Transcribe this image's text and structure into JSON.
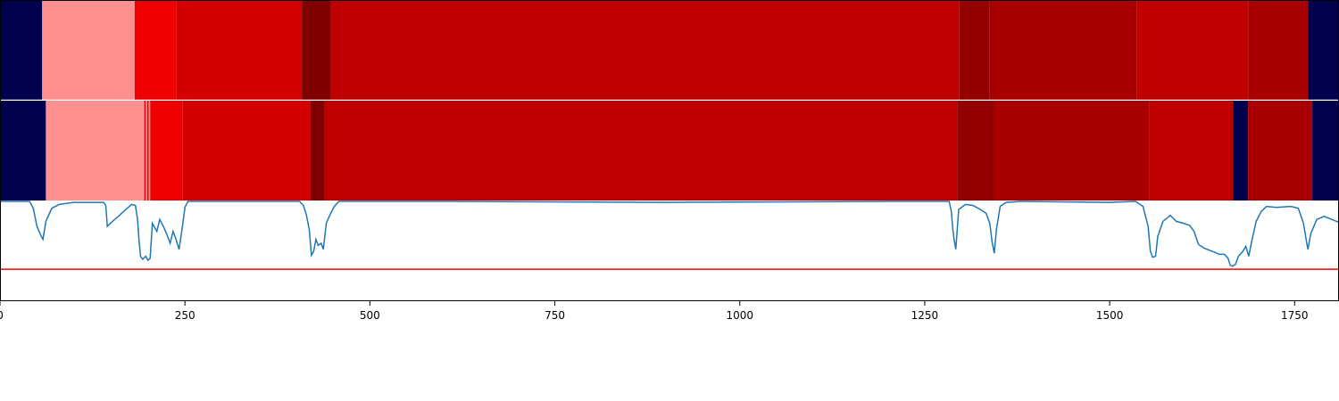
{
  "chart_data": {
    "type": "heatmap",
    "title": "",
    "xlabel": "",
    "ylabel": "",
    "xlim": [
      0,
      1810
    ],
    "x_ticks": [
      0,
      250,
      500,
      750,
      1000,
      1250,
      1500,
      1750
    ],
    "x_tick_labels": [
      "0",
      "250",
      "500",
      "750",
      "1000",
      "1250",
      "1500",
      "1750"
    ],
    "grid": false,
    "legend": "none",
    "segment_rows": [
      {
        "segments": [
          {
            "start": 0,
            "end": 57,
            "color": "#00004c"
          },
          {
            "start": 57,
            "end": 182,
            "color": "#ff9090"
          },
          {
            "start": 182,
            "end": 238,
            "color": "#ee0000"
          },
          {
            "start": 238,
            "end": 408,
            "color": "#d40000"
          },
          {
            "start": 408,
            "end": 447,
            "color": "#800000"
          },
          {
            "start": 447,
            "end": 1297,
            "color": "#be0000"
          },
          {
            "start": 1297,
            "end": 1338,
            "color": "#920000"
          },
          {
            "start": 1338,
            "end": 1537,
            "color": "#a80000"
          },
          {
            "start": 1537,
            "end": 1688,
            "color": "#be0000"
          },
          {
            "start": 1688,
            "end": 1768,
            "color": "#a80000"
          },
          {
            "start": 1768,
            "end": 1810,
            "color": "#00004c"
          }
        ]
      },
      {
        "segments": [
          {
            "start": 0,
            "end": 62,
            "color": "#00004c"
          },
          {
            "start": 62,
            "end": 195,
            "color": "#ff9090"
          },
          {
            "start": 195,
            "end": 197,
            "color": "#ee0000"
          },
          {
            "start": 197,
            "end": 199,
            "color": "#ff9090"
          },
          {
            "start": 199,
            "end": 201,
            "color": "#ee0000"
          },
          {
            "start": 201,
            "end": 203,
            "color": "#ff9090"
          },
          {
            "start": 203,
            "end": 247,
            "color": "#ee0000"
          },
          {
            "start": 247,
            "end": 419,
            "color": "#d40000"
          },
          {
            "start": 419,
            "end": 438,
            "color": "#800000"
          },
          {
            "start": 438,
            "end": 1294,
            "color": "#be0000"
          },
          {
            "start": 1294,
            "end": 1343,
            "color": "#920000"
          },
          {
            "start": 1343,
            "end": 1554,
            "color": "#a80000"
          },
          {
            "start": 1554,
            "end": 1667,
            "color": "#be0000"
          },
          {
            "start": 1667,
            "end": 1687,
            "color": "#00004c"
          },
          {
            "start": 1687,
            "end": 1774,
            "color": "#a80000"
          },
          {
            "start": 1774,
            "end": 1810,
            "color": "#00004c"
          }
        ]
      }
    ],
    "line": {
      "color": "#1f77b4",
      "ylim": [
        0,
        1
      ],
      "threshold": {
        "value": 0.32,
        "color": "#ff0000"
      },
      "points": [
        [
          0,
          1.0
        ],
        [
          40,
          1.0
        ],
        [
          45,
          0.93
        ],
        [
          50,
          0.75
        ],
        [
          55,
          0.66
        ],
        [
          58,
          0.62
        ],
        [
          62,
          0.8
        ],
        [
          70,
          0.93
        ],
        [
          80,
          0.97
        ],
        [
          100,
          0.99
        ],
        [
          140,
          0.99
        ],
        [
          143,
          0.96
        ],
        [
          145,
          0.75
        ],
        [
          152,
          0.8
        ],
        [
          160,
          0.85
        ],
        [
          170,
          0.92
        ],
        [
          178,
          0.97
        ],
        [
          183,
          0.96
        ],
        [
          186,
          0.82
        ],
        [
          188,
          0.6
        ],
        [
          190,
          0.45
        ],
        [
          193,
          0.42
        ],
        [
          197,
          0.45
        ],
        [
          200,
          0.41
        ],
        [
          203,
          0.43
        ],
        [
          206,
          0.78
        ],
        [
          212,
          0.7
        ],
        [
          216,
          0.82
        ],
        [
          222,
          0.73
        ],
        [
          226,
          0.66
        ],
        [
          230,
          0.58
        ],
        [
          234,
          0.7
        ],
        [
          238,
          0.62
        ],
        [
          242,
          0.52
        ],
        [
          246,
          0.72
        ],
        [
          250,
          0.94
        ],
        [
          254,
          1.0
        ],
        [
          300,
          1.0
        ],
        [
          405,
          1.0
        ],
        [
          410,
          0.96
        ],
        [
          414,
          0.87
        ],
        [
          418,
          0.72
        ],
        [
          421,
          0.46
        ],
        [
          424,
          0.5
        ],
        [
          427,
          0.62
        ],
        [
          430,
          0.56
        ],
        [
          434,
          0.58
        ],
        [
          437,
          0.52
        ],
        [
          441,
          0.78
        ],
        [
          447,
          0.88
        ],
        [
          452,
          0.95
        ],
        [
          458,
          1.0
        ],
        [
          600,
          1.0
        ],
        [
          900,
          0.99
        ],
        [
          1200,
          1.0
        ],
        [
          1283,
          1.0
        ],
        [
          1286,
          0.9
        ],
        [
          1288,
          0.72
        ],
        [
          1290,
          0.6
        ],
        [
          1292,
          0.52
        ],
        [
          1296,
          0.92
        ],
        [
          1305,
          0.97
        ],
        [
          1315,
          0.96
        ],
        [
          1325,
          0.92
        ],
        [
          1333,
          0.88
        ],
        [
          1338,
          0.78
        ],
        [
          1341,
          0.6
        ],
        [
          1344,
          0.48
        ],
        [
          1347,
          0.72
        ],
        [
          1352,
          0.95
        ],
        [
          1360,
          0.99
        ],
        [
          1380,
          1.0
        ],
        [
          1500,
          0.99
        ],
        [
          1535,
          1.0
        ],
        [
          1545,
          0.95
        ],
        [
          1552,
          0.75
        ],
        [
          1555,
          0.5
        ],
        [
          1558,
          0.44
        ],
        [
          1562,
          0.45
        ],
        [
          1565,
          0.65
        ],
        [
          1572,
          0.8
        ],
        [
          1582,
          0.86
        ],
        [
          1590,
          0.8
        ],
        [
          1600,
          0.78
        ],
        [
          1608,
          0.76
        ],
        [
          1614,
          0.7
        ],
        [
          1620,
          0.57
        ],
        [
          1628,
          0.53
        ],
        [
          1635,
          0.51
        ],
        [
          1642,
          0.49
        ],
        [
          1648,
          0.47
        ],
        [
          1655,
          0.47
        ],
        [
          1660,
          0.43
        ],
        [
          1663,
          0.36
        ],
        [
          1666,
          0.35
        ],
        [
          1670,
          0.37
        ],
        [
          1674,
          0.45
        ],
        [
          1680,
          0.5
        ],
        [
          1684,
          0.55
        ],
        [
          1688,
          0.45
        ],
        [
          1692,
          0.6
        ],
        [
          1698,
          0.8
        ],
        [
          1705,
          0.9
        ],
        [
          1712,
          0.95
        ],
        [
          1725,
          0.94
        ],
        [
          1745,
          0.95
        ],
        [
          1755,
          0.93
        ],
        [
          1762,
          0.78
        ],
        [
          1766,
          0.6
        ],
        [
          1768,
          0.52
        ],
        [
          1772,
          0.68
        ],
        [
          1780,
          0.82
        ],
        [
          1790,
          0.85
        ],
        [
          1800,
          0.82
        ],
        [
          1810,
          0.79
        ]
      ]
    }
  }
}
